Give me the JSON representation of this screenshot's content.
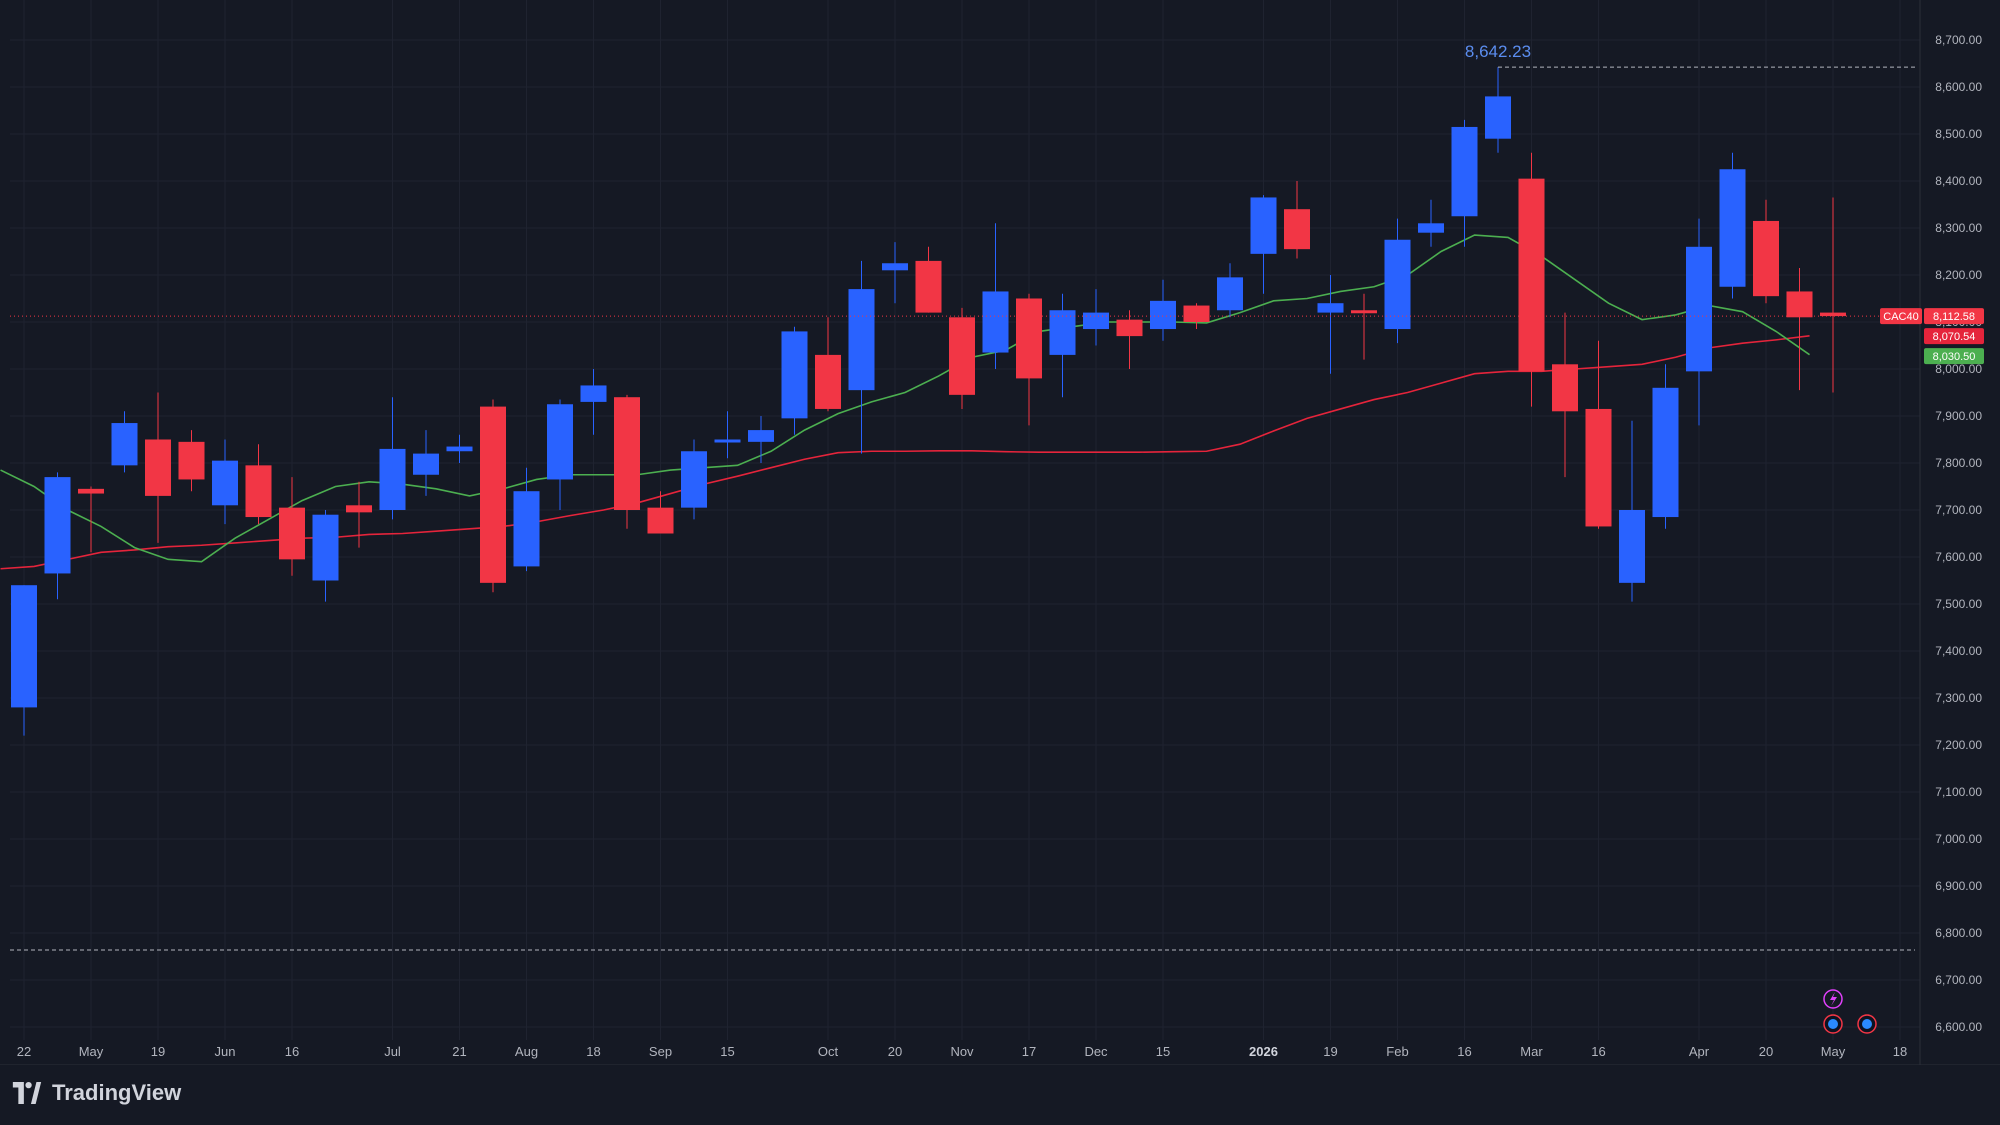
{
  "brand": {
    "name": "TradingView"
  },
  "colors": {
    "background": "#151924",
    "up": "#2962ff",
    "down": "#f23645",
    "ma_fast": "#4caf50",
    "ma_slow": "#e5243b",
    "grid": "#1f2330",
    "text": "#b2b5be"
  },
  "icons": [
    "lightning-icon",
    "globe-event-icon",
    "globe-event-icon"
  ],
  "chart_data": {
    "type": "candlestick",
    "symbol": "CAC40",
    "ylim": [
      6560,
      8770
    ],
    "y_ticks": [
      "6,600.00",
      "6,700.00",
      "6,800.00",
      "6,900.00",
      "7,000.00",
      "7,100.00",
      "7,200.00",
      "7,300.00",
      "7,400.00",
      "7,500.00",
      "7,600.00",
      "7,700.00",
      "7,800.00",
      "7,900.00",
      "8,000.00",
      "8,100.00",
      "8,200.00",
      "8,300.00",
      "8,400.00",
      "8,500.00",
      "8,600.00",
      "8,700.00"
    ],
    "x_ticks": [
      {
        "i": 0,
        "label": "22"
      },
      {
        "i": 2,
        "label": "May"
      },
      {
        "i": 4,
        "label": "19"
      },
      {
        "i": 6,
        "label": "Jun"
      },
      {
        "i": 8,
        "label": "16"
      },
      {
        "i": 11,
        "label": "Jul"
      },
      {
        "i": 13,
        "label": "21"
      },
      {
        "i": 15,
        "label": "Aug"
      },
      {
        "i": 17,
        "label": "18"
      },
      {
        "i": 19,
        "label": "Sep"
      },
      {
        "i": 21,
        "label": "15"
      },
      {
        "i": 24,
        "label": "Oct"
      },
      {
        "i": 26,
        "label": "20"
      },
      {
        "i": 28,
        "label": "Nov"
      },
      {
        "i": 30,
        "label": "17"
      },
      {
        "i": 32,
        "label": "Dec"
      },
      {
        "i": 34,
        "label": "15"
      },
      {
        "i": 37,
        "label": "2026",
        "bold": true
      },
      {
        "i": 39,
        "label": "19"
      },
      {
        "i": 41,
        "label": "Feb"
      },
      {
        "i": 43,
        "label": "16"
      },
      {
        "i": 45,
        "label": "Mar"
      },
      {
        "i": 47,
        "label": "16"
      },
      {
        "i": 50,
        "label": "Apr"
      },
      {
        "i": 52,
        "label": "20"
      },
      {
        "i": 54,
        "label": "May"
      },
      {
        "i": 56,
        "label": "18"
      }
    ],
    "candles": [
      {
        "o": 7280,
        "h": 7540,
        "l": 7220,
        "c": 7540
      },
      {
        "o": 7565,
        "h": 7780,
        "l": 7510,
        "c": 7770
      },
      {
        "o": 7745,
        "h": 7750,
        "l": 7610,
        "c": 7735
      },
      {
        "o": 7795,
        "h": 7910,
        "l": 7780,
        "c": 7885
      },
      {
        "o": 7850,
        "h": 7950,
        "l": 7630,
        "c": 7730
      },
      {
        "o": 7845,
        "h": 7870,
        "l": 7740,
        "c": 7765
      },
      {
        "o": 7710,
        "h": 7850,
        "l": 7670,
        "c": 7805
      },
      {
        "o": 7795,
        "h": 7840,
        "l": 7670,
        "c": 7685
      },
      {
        "o": 7705,
        "h": 7770,
        "l": 7560,
        "c": 7595
      },
      {
        "o": 7550,
        "h": 7700,
        "l": 7505,
        "c": 7690
      },
      {
        "o": 7710,
        "h": 7760,
        "l": 7620,
        "c": 7695
      },
      {
        "o": 7700,
        "h": 7940,
        "l": 7680,
        "c": 7830
      },
      {
        "o": 7775,
        "h": 7870,
        "l": 7730,
        "c": 7820
      },
      {
        "o": 7825,
        "h": 7860,
        "l": 7800,
        "c": 7835
      },
      {
        "o": 7920,
        "h": 7935,
        "l": 7525,
        "c": 7545
      },
      {
        "o": 7580,
        "h": 7790,
        "l": 7570,
        "c": 7740
      },
      {
        "o": 7765,
        "h": 7935,
        "l": 7700,
        "c": 7925
      },
      {
        "o": 7930,
        "h": 8000,
        "l": 7860,
        "c": 7965
      },
      {
        "o": 7940,
        "h": 7945,
        "l": 7660,
        "c": 7700
      },
      {
        "o": 7705,
        "h": 7740,
        "l": 7650,
        "c": 7650
      },
      {
        "o": 7705,
        "h": 7850,
        "l": 7680,
        "c": 7825
      },
      {
        "o": 7845,
        "h": 7910,
        "l": 7810,
        "c": 7850
      },
      {
        "o": 7845,
        "h": 7900,
        "l": 7800,
        "c": 7870
      },
      {
        "o": 7895,
        "h": 8090,
        "l": 7860,
        "c": 8080
      },
      {
        "o": 8030,
        "h": 8110,
        "l": 7910,
        "c": 7915
      },
      {
        "o": 7955,
        "h": 8230,
        "l": 7820,
        "c": 8170
      },
      {
        "o": 8210,
        "h": 8270,
        "l": 8140,
        "c": 8225
      },
      {
        "o": 8230,
        "h": 8260,
        "l": 8120,
        "c": 8120
      },
      {
        "o": 8110,
        "h": 8130,
        "l": 7915,
        "c": 7945
      },
      {
        "o": 8035,
        "h": 8310,
        "l": 8000,
        "c": 8165
      },
      {
        "o": 8150,
        "h": 8160,
        "l": 7880,
        "c": 7980
      },
      {
        "o": 8030,
        "h": 8160,
        "l": 7940,
        "c": 8125
      },
      {
        "o": 8085,
        "h": 8170,
        "l": 8050,
        "c": 8120
      },
      {
        "o": 8105,
        "h": 8125,
        "l": 8000,
        "c": 8070
      },
      {
        "o": 8085,
        "h": 8190,
        "l": 8060,
        "c": 8145
      },
      {
        "o": 8135,
        "h": 8140,
        "l": 8085,
        "c": 8100
      },
      {
        "o": 8125,
        "h": 8225,
        "l": 8110,
        "c": 8195
      },
      {
        "o": 8245,
        "h": 8370,
        "l": 8160,
        "c": 8365
      },
      {
        "o": 8340,
        "h": 8400,
        "l": 8235,
        "c": 8255
      },
      {
        "o": 8120,
        "h": 8200,
        "l": 7990,
        "c": 8140
      },
      {
        "o": 8125,
        "h": 8160,
        "l": 8020,
        "c": 8120
      },
      {
        "o": 8085,
        "h": 8320,
        "l": 8055,
        "c": 8275
      },
      {
        "o": 8290,
        "h": 8360,
        "l": 8260,
        "c": 8310
      },
      {
        "o": 8325,
        "h": 8530,
        "l": 8260,
        "c": 8515
      },
      {
        "o": 8490,
        "h": 8642.23,
        "l": 8460,
        "c": 8580
      },
      {
        "o": 8405,
        "h": 8460,
        "l": 7920,
        "c": 7995
      },
      {
        "o": 8010,
        "h": 8120,
        "l": 7770,
        "c": 7910
      },
      {
        "o": 7915,
        "h": 8060,
        "l": 7660,
        "c": 7665
      },
      {
        "o": 7545,
        "h": 7890,
        "l": 7505,
        "c": 7700
      },
      {
        "o": 7685,
        "h": 8010,
        "l": 7660,
        "c": 7960
      },
      {
        "o": 7995,
        "h": 8320,
        "l": 7880,
        "c": 8260
      },
      {
        "o": 8175,
        "h": 8460,
        "l": 8150,
        "c": 8425
      },
      {
        "o": 8315,
        "h": 8360,
        "l": 8140,
        "c": 8155
      },
      {
        "o": 8165,
        "h": 8215,
        "l": 7955,
        "c": 8110
      },
      {
        "o": 8120,
        "h": 8365,
        "l": 7950,
        "c": 8112.58
      }
    ],
    "ma_fast": [
      7785,
      7750,
      7700,
      7665,
      7620,
      7595,
      7590,
      7640,
      7680,
      7720,
      7750,
      7760,
      7755,
      7745,
      7730,
      7745,
      7765,
      7775,
      7775,
      7775,
      7785,
      7790,
      7795,
      7825,
      7870,
      7905,
      7930,
      7950,
      7985,
      8025,
      8040,
      8080,
      8090,
      8100,
      8100,
      8100,
      8098,
      8120,
      8145,
      8150,
      8165,
      8175,
      8200,
      8250,
      8285,
      8280,
      8240,
      8190,
      8140,
      8105,
      8115,
      8135,
      8122,
      8080,
      8030.5
    ],
    "ma_slow": [
      7575,
      7580,
      7595,
      7610,
      7615,
      7622,
      7625,
      7630,
      7635,
      7640,
      7642,
      7648,
      7650,
      7655,
      7660,
      7665,
      7675,
      7688,
      7700,
      7715,
      7735,
      7755,
      7772,
      7790,
      7808,
      7822,
      7825,
      7825,
      7826,
      7826,
      7824,
      7823,
      7823,
      7823,
      7823,
      7824,
      7825,
      7840,
      7868,
      7895,
      7915,
      7935,
      7950,
      7970,
      7990,
      7995,
      7995,
      8000,
      8005,
      8010,
      8025,
      8045,
      8055,
      8062,
      8070.54
    ],
    "high_annotation": "8,642.23",
    "labels": {
      "symbol": "CAC40",
      "last": "8,112.58",
      "ma_slow": "8,070.54",
      "ma_fast": "8,030.50"
    }
  }
}
